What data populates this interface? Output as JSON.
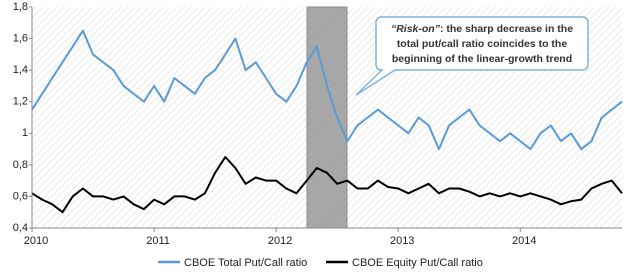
{
  "chart_data": {
    "type": "line",
    "categories": [
      "2010",
      null,
      null,
      null,
      null,
      null,
      null,
      null,
      null,
      null,
      null,
      null,
      "2011",
      null,
      null,
      null,
      null,
      null,
      null,
      null,
      null,
      null,
      null,
      null,
      "2012",
      null,
      null,
      null,
      null,
      null,
      null,
      null,
      null,
      null,
      null,
      null,
      "2013",
      null,
      null,
      null,
      null,
      null,
      null,
      null,
      null,
      null,
      null,
      null,
      "2014",
      null,
      null,
      null,
      null,
      null,
      null,
      null,
      null,
      null,
      null
    ],
    "series": [
      {
        "name": "CBOE Total Put/Call ratio",
        "color": "#5b9bd5",
        "values": [
          1.15,
          1.25,
          1.35,
          1.45,
          1.55,
          1.65,
          1.5,
          1.45,
          1.4,
          1.3,
          1.25,
          1.2,
          1.3,
          1.2,
          1.35,
          1.3,
          1.25,
          1.35,
          1.4,
          1.5,
          1.6,
          1.4,
          1.45,
          1.35,
          1.25,
          1.2,
          1.3,
          1.45,
          1.55,
          1.3,
          1.1,
          0.95,
          1.05,
          1.1,
          1.15,
          1.1,
          1.05,
          1.0,
          1.1,
          1.05,
          0.9,
          1.05,
          1.1,
          1.15,
          1.05,
          1.0,
          0.95,
          1.0,
          0.95,
          0.9,
          1.0,
          1.05,
          0.95,
          1.0,
          0.9,
          0.95,
          1.1,
          1.15,
          1.2
        ]
      },
      {
        "name": "CBOE Equity Put/Call ratio",
        "color": "#000000",
        "values": [
          0.62,
          0.58,
          0.55,
          0.5,
          0.6,
          0.65,
          0.6,
          0.6,
          0.58,
          0.6,
          0.55,
          0.52,
          0.58,
          0.55,
          0.6,
          0.6,
          0.58,
          0.62,
          0.75,
          0.85,
          0.78,
          0.68,
          0.72,
          0.7,
          0.7,
          0.65,
          0.62,
          0.7,
          0.78,
          0.75,
          0.68,
          0.7,
          0.65,
          0.65,
          0.7,
          0.66,
          0.65,
          0.62,
          0.65,
          0.68,
          0.62,
          0.65,
          0.65,
          0.63,
          0.6,
          0.62,
          0.6,
          0.62,
          0.6,
          0.62,
          0.6,
          0.58,
          0.55,
          0.57,
          0.58,
          0.65,
          0.68,
          0.7,
          0.62
        ]
      }
    ],
    "ylim": [
      0.4,
      1.8
    ],
    "yticks": [
      {
        "value": 0.4,
        "label": "0,4"
      },
      {
        "value": 0.6,
        "label": "0,6"
      },
      {
        "value": 0.8,
        "label": "0,8"
      },
      1,
      {
        "value": 1.2,
        "label": "1,2"
      },
      {
        "value": 1.4,
        "label": "1,4"
      },
      {
        "value": 1.6,
        "label": "1,6"
      },
      {
        "value": 1.8,
        "label": "1,8"
      }
    ],
    "annotation": {
      "emphasis": "“Risk-on”",
      "lines": [
        ": the sharp decrease in the",
        "total put/call ratio coincides to the",
        "beginning of the linear-growth trend"
      ]
    }
  }
}
